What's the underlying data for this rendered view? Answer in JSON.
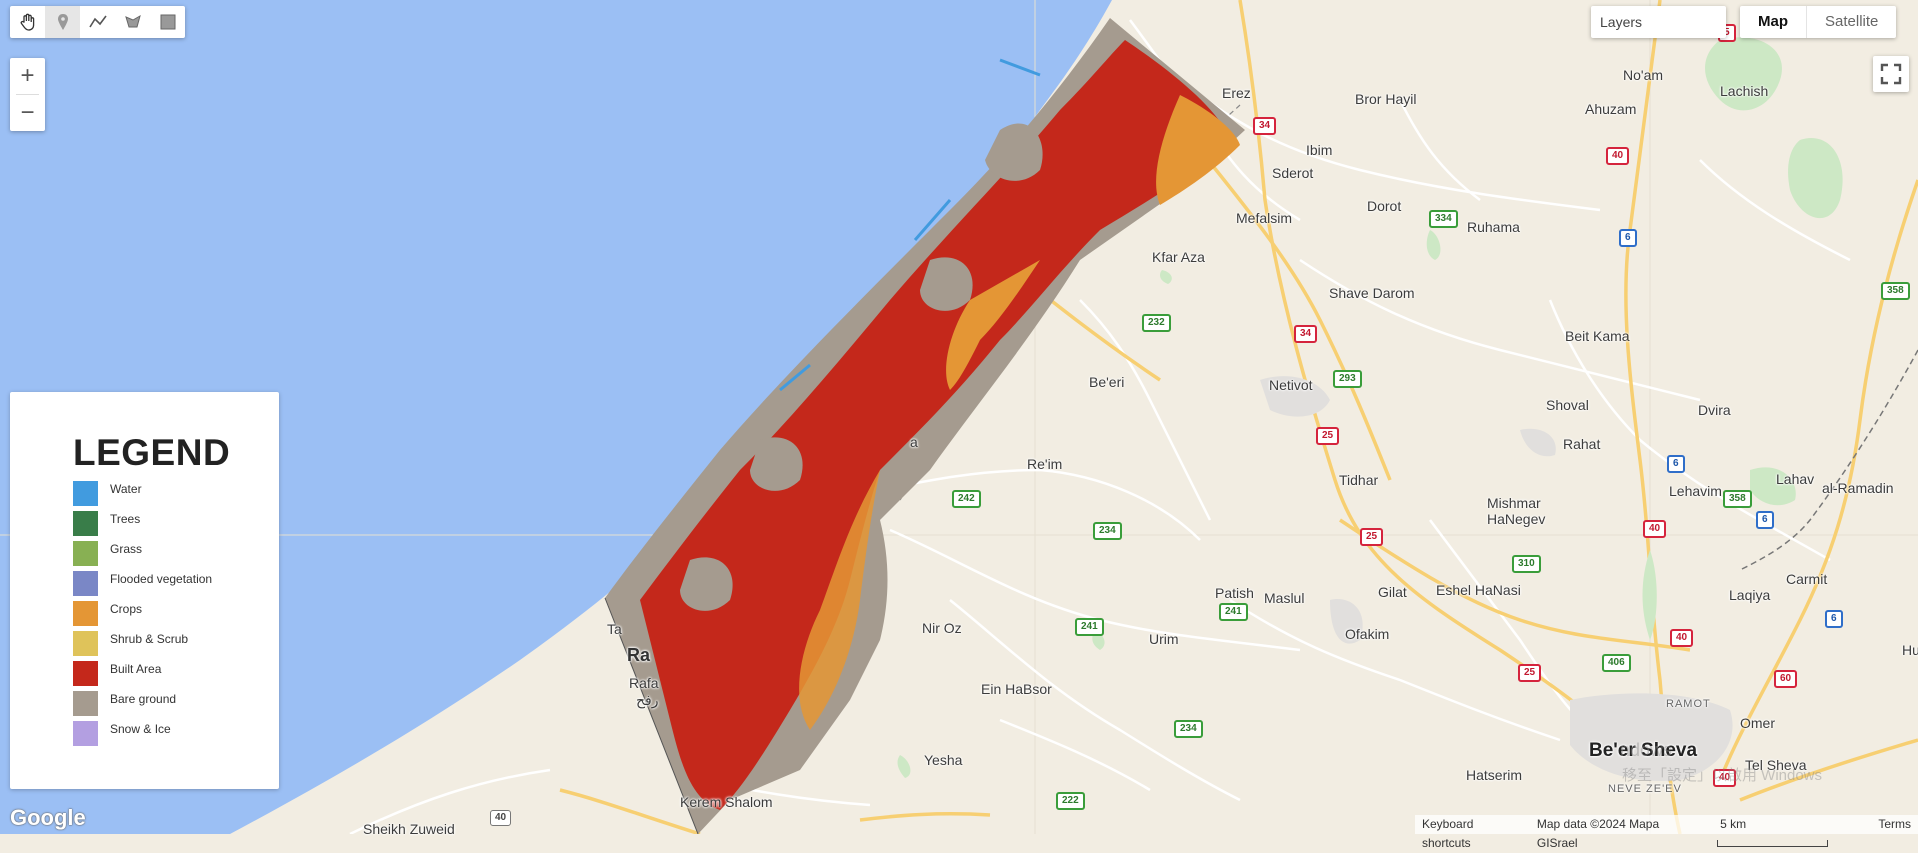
{
  "toolbar": {
    "tools": [
      {
        "icon": "hand-icon",
        "label": "Pan"
      },
      {
        "icon": "marker-icon",
        "label": "Point"
      },
      {
        "icon": "polyline-icon",
        "label": "Line"
      },
      {
        "icon": "polygon-icon",
        "label": "Polygon"
      },
      {
        "icon": "rectangle-icon",
        "label": "Rectangle"
      }
    ]
  },
  "zoom": {
    "in_label": "+",
    "out_label": "−"
  },
  "layers_label": "Layers",
  "map_type": {
    "map_label": "Map",
    "satellite_label": "Satellite",
    "selected": "Map"
  },
  "legend": {
    "title": "LEGEND",
    "items": [
      {
        "label": "Water",
        "color": "#419bdf"
      },
      {
        "label": "Trees",
        "color": "#397d49"
      },
      {
        "label": "Grass",
        "color": "#88b053"
      },
      {
        "label": "Flooded vegetation",
        "color": "#7a87c6"
      },
      {
        "label": "Crops",
        "color": "#e49635"
      },
      {
        "label": "Shrub & Scrub",
        "color": "#dfc35a"
      },
      {
        "label": "Built Area",
        "color": "#c4281b"
      },
      {
        "label": "Bare ground",
        "color": "#a59b8f"
      },
      {
        "label": "Snow & Ice",
        "color": "#b39fe1"
      }
    ]
  },
  "places": [
    {
      "name": "Erez"
    },
    {
      "name": "Bror Hayil"
    },
    {
      "name": "Ibim"
    },
    {
      "name": "Sderot"
    },
    {
      "name": "Dorot"
    },
    {
      "name": "Ruhama"
    },
    {
      "name": "Mefalsim"
    },
    {
      "name": "Kfar Aza"
    },
    {
      "name": "Shave Darom"
    },
    {
      "name": "Beit Kama"
    },
    {
      "name": "Be'eri"
    },
    {
      "name": "Netivot"
    },
    {
      "name": "Shoval"
    },
    {
      "name": "Dvira"
    },
    {
      "name": "Rahat"
    },
    {
      "name": "Re'im"
    },
    {
      "name": "Tidhar"
    },
    {
      "name": "Lehavim"
    },
    {
      "name": "Lahav"
    },
    {
      "name": "al-Ramadin"
    },
    {
      "name": "Mishmar HaNegev"
    },
    {
      "name": "Carmit"
    },
    {
      "name": "Laqiya"
    },
    {
      "name": "Patish"
    },
    {
      "name": "Maslul"
    },
    {
      "name": "Gilat"
    },
    {
      "name": "Eshel HaNasi"
    },
    {
      "name": "Ofakim"
    },
    {
      "name": "Nir Oz"
    },
    {
      "name": "Urim"
    },
    {
      "name": "Ein HaBsor"
    },
    {
      "name": "Be'er Sheva"
    },
    {
      "name": "Omer"
    },
    {
      "name": "Tel Sheva"
    },
    {
      "name": "RAMOT"
    },
    {
      "name": "NEVE ZE'EV"
    },
    {
      "name": "Hatserim"
    },
    {
      "name": "Yesha"
    },
    {
      "name": "Kerem Shalom"
    },
    {
      "name": "Sheikh Zuweid"
    },
    {
      "name": "No'am"
    },
    {
      "name": "Lachish"
    },
    {
      "name": "Ahuzam"
    },
    {
      "name": "Ra"
    },
    {
      "name": "Rafa"
    },
    {
      "name": "رفح"
    },
    {
      "name": "Ta"
    },
    {
      "name": "a"
    },
    {
      "name": "Hu"
    }
  ],
  "shields": [
    {
      "label": "34",
      "style": "red"
    },
    {
      "label": "34",
      "style": "red"
    },
    {
      "label": "25",
      "style": "red"
    },
    {
      "label": "25",
      "style": "red"
    },
    {
      "label": "25",
      "style": "red"
    },
    {
      "label": "40",
      "style": "red"
    },
    {
      "label": "40",
      "style": "red"
    },
    {
      "label": "40",
      "style": "red"
    },
    {
      "label": "40",
      "style": "red"
    },
    {
      "label": "60",
      "style": "red"
    },
    {
      "label": "5",
      "style": "red"
    },
    {
      "label": "334",
      "style": "green"
    },
    {
      "label": "232",
      "style": "green"
    },
    {
      "label": "293",
      "style": "green"
    },
    {
      "label": "242",
      "style": "green"
    },
    {
      "label": "234",
      "style": "green"
    },
    {
      "label": "234",
      "style": "green"
    },
    {
      "label": "241",
      "style": "green"
    },
    {
      "label": "241",
      "style": "green"
    },
    {
      "label": "310",
      "style": "green"
    },
    {
      "label": "406",
      "style": "green"
    },
    {
      "label": "358",
      "style": "green"
    },
    {
      "label": "358",
      "style": "green"
    },
    {
      "label": "222",
      "style": "green"
    },
    {
      "label": "6",
      "style": "blue"
    },
    {
      "label": "6",
      "style": "blue"
    },
    {
      "label": "6",
      "style": "blue"
    },
    {
      "label": "6",
      "style": "blue"
    },
    {
      "label": "40",
      "style": "gray"
    }
  ],
  "watermark": {
    "line1": "ndows",
    "line2": "移至「設定」以啟用 Windows"
  },
  "footer": {
    "shortcuts": "Keyboard shortcuts",
    "map_data": "Map data ©2024 Mapa GISrael",
    "scale": "5 km",
    "terms": "Terms"
  },
  "google_logo": "Google",
  "colors": {
    "sea": "#9bbff4",
    "land": "#f2ede2",
    "highway": "#f9d27a",
    "road": "#ffffff"
  }
}
